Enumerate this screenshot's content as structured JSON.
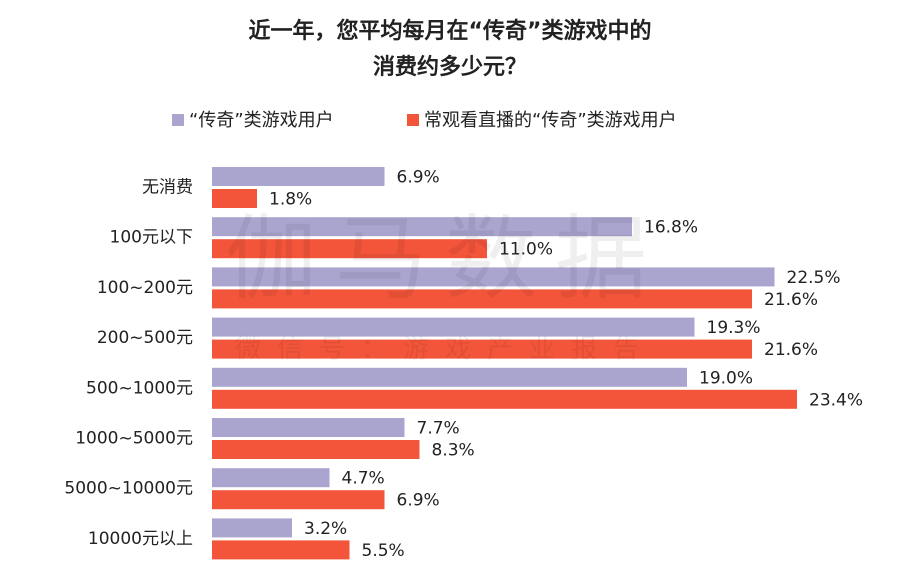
{
  "chart_data": {
    "type": "bar",
    "orientation": "horizontal",
    "title": [
      "近一年，您平均每月在“传奇”类游戏中的",
      "消费约多少元？"
    ],
    "watermark": {
      "title": "伽马数据",
      "subtitle": "微信号：游戏产业报告"
    },
    "categories": [
      "无消费",
      "100元以下",
      "100~200元",
      "200~500元",
      "500~1000元",
      "1000~5000元",
      "5000~10000元",
      "10000元以上"
    ],
    "series": [
      {
        "name": "“传奇”类游戏用户",
        "color": "#aaa5cf",
        "values": [
          6.9,
          16.8,
          22.5,
          19.3,
          19.0,
          7.7,
          4.7,
          3.2
        ],
        "value_labels": [
          "6.9%",
          "16.8%",
          "22.5%",
          "19.3%",
          "19.0%",
          "7.7%",
          "4.7%",
          "3.2%"
        ]
      },
      {
        "name": "常观看直播的“传奇”类游戏用户",
        "color": "#f2553a",
        "values": [
          1.8,
          11.0,
          21.6,
          21.6,
          23.4,
          8.3,
          6.9,
          5.5
        ],
        "value_labels": [
          "1.8%",
          "11.0%",
          "21.6%",
          "21.6%",
          "23.4%",
          "8.3%",
          "6.9%",
          "5.5%"
        ]
      }
    ],
    "legend": "top"
  }
}
